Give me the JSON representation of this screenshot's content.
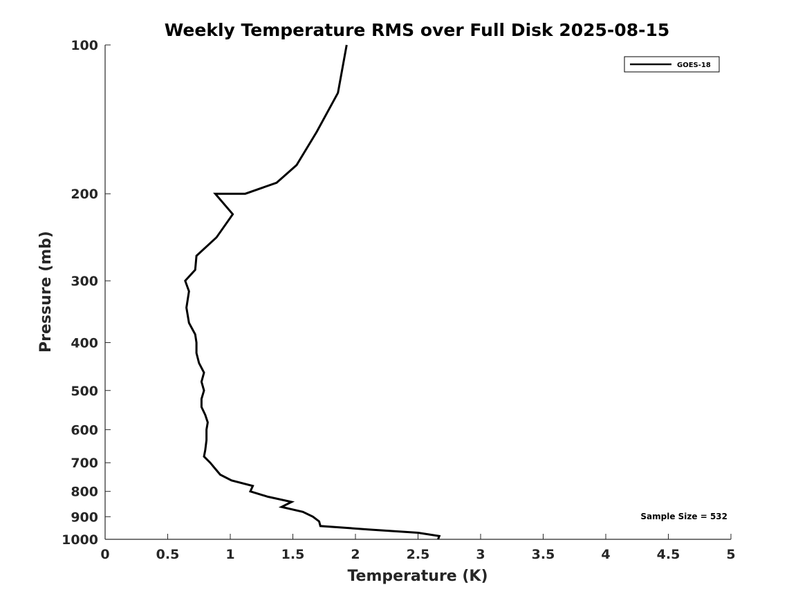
{
  "chart_data": {
    "type": "line",
    "title": "Weekly Temperature RMS over Full Disk 2025-08-15",
    "xlabel": "Temperature (K)",
    "ylabel": "Pressure (mb)",
    "xlim": [
      0,
      5
    ],
    "ylim": [
      100,
      1000
    ],
    "y_scale": "log",
    "y_reversed": true,
    "grid": false,
    "legend_position": "top-right",
    "x_ticks": [
      0,
      0.5,
      1,
      1.5,
      2,
      2.5,
      3,
      3.5,
      4,
      4.5,
      5
    ],
    "x_tick_labels": [
      "0",
      "0.5",
      "1",
      "1.5",
      "2",
      "2.5",
      "3",
      "3.5",
      "4",
      "4.5",
      "5"
    ],
    "y_ticks": [
      100,
      200,
      300,
      400,
      500,
      600,
      700,
      800,
      900,
      1000
    ],
    "y_tick_labels": [
      "100",
      "200",
      "300",
      "400",
      "500",
      "600",
      "700",
      "800",
      "900",
      "1000"
    ],
    "series": [
      {
        "name": "GOES-18",
        "color": "#000000",
        "points": [
          [
            1.93,
            100
          ],
          [
            1.86,
            125
          ],
          [
            1.69,
            150
          ],
          [
            1.53,
            175
          ],
          [
            1.37,
            190
          ],
          [
            1.12,
            200
          ],
          [
            0.88,
            200
          ],
          [
            1.02,
            220
          ],
          [
            0.89,
            245
          ],
          [
            0.73,
            267
          ],
          [
            0.72,
            285
          ],
          [
            0.64,
            300
          ],
          [
            0.67,
            315
          ],
          [
            0.65,
            340
          ],
          [
            0.67,
            365
          ],
          [
            0.72,
            385
          ],
          [
            0.73,
            400
          ],
          [
            0.73,
            420
          ],
          [
            0.75,
            440
          ],
          [
            0.79,
            460
          ],
          [
            0.77,
            480
          ],
          [
            0.79,
            500
          ],
          [
            0.77,
            520
          ],
          [
            0.77,
            540
          ],
          [
            0.8,
            560
          ],
          [
            0.82,
            580
          ],
          [
            0.81,
            600
          ],
          [
            0.81,
            630
          ],
          [
            0.8,
            660
          ],
          [
            0.79,
            680
          ],
          [
            0.84,
            700
          ],
          [
            0.88,
            720
          ],
          [
            0.92,
            740
          ],
          [
            1.01,
            760
          ],
          [
            1.18,
            780
          ],
          [
            1.16,
            800
          ],
          [
            1.3,
            820
          ],
          [
            1.49,
            840
          ],
          [
            1.41,
            860
          ],
          [
            1.58,
            880
          ],
          [
            1.66,
            900
          ],
          [
            1.71,
            920
          ],
          [
            1.72,
            940
          ],
          [
            2.1,
            955
          ],
          [
            2.5,
            970
          ],
          [
            2.67,
            985
          ],
          [
            2.66,
            1000
          ]
        ]
      }
    ],
    "annotations": [
      {
        "text": "Sample Size = 532",
        "position": "bottom-right"
      }
    ]
  }
}
